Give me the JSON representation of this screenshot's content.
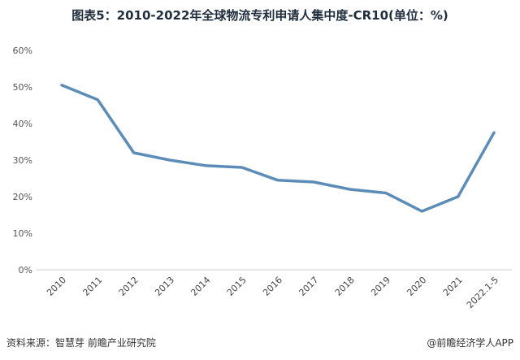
{
  "header": {
    "title": "图表5：2010-2022年全球物流专利申请人集中度-CR10(单位：%)"
  },
  "footer": {
    "source": "资料来源：智慧芽 前瞻产业研究院",
    "brand": "@前瞻经济学人APP"
  },
  "chart_data": {
    "type": "line",
    "title": "图表5：2010-2022年全球物流专利申请人集中度-CR10(单位：%)",
    "categories": [
      "2010",
      "2011",
      "2012",
      "2013",
      "2014",
      "2015",
      "2016",
      "2017",
      "2018",
      "2019",
      "2020",
      "2021",
      "2022.1-5"
    ],
    "series": [
      {
        "values": [
          50.5,
          46.5,
          32,
          30,
          28.5,
          28,
          24.5,
          24,
          22,
          21,
          16,
          20,
          37.5
        ]
      }
    ],
    "ylim": [
      0,
      60
    ],
    "yticks": [
      "0%",
      "10%",
      "20%",
      "30%",
      "40%",
      "50%",
      "60%"
    ],
    "line_color": "#5b8db8",
    "grid": false,
    "legend": "none"
  }
}
